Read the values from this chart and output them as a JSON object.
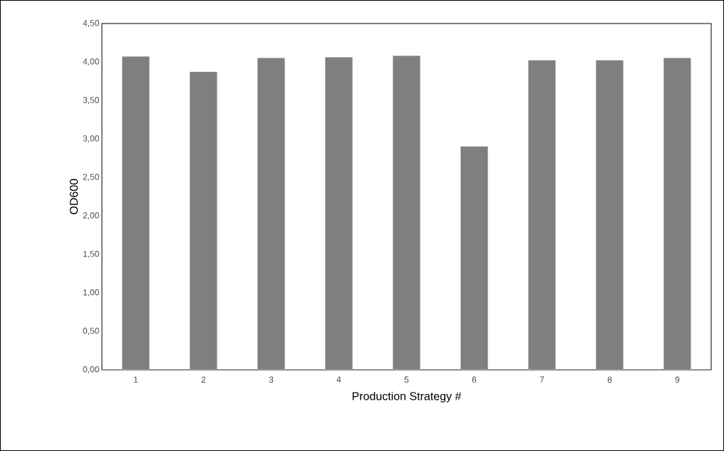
{
  "chart_data": {
    "type": "bar",
    "xlabel": "Production Strategy #",
    "ylabel": "OD600",
    "categories": [
      "1",
      "2",
      "3",
      "4",
      "5",
      "6",
      "7",
      "8",
      "9"
    ],
    "values": [
      4.07,
      3.87,
      4.05,
      4.06,
      4.08,
      2.9,
      4.02,
      4.02,
      4.05
    ],
    "color": "#7f7f7f",
    "ylim": [
      0,
      4.5
    ],
    "yticks": [
      {
        "value": 0,
        "label": "0,00"
      },
      {
        "value": 0.5,
        "label": "0,50"
      },
      {
        "value": 1,
        "label": "1,00"
      },
      {
        "value": 1.5,
        "label": "1,50"
      },
      {
        "value": 2,
        "label": "2,00"
      },
      {
        "value": 2.5,
        "label": "2,50"
      },
      {
        "value": 3,
        "label": "3,00"
      },
      {
        "value": 3.5,
        "label": "3,50"
      },
      {
        "value": 4,
        "label": "4,00"
      },
      {
        "value": 4.5,
        "label": "4,50"
      }
    ],
    "grid": false
  }
}
